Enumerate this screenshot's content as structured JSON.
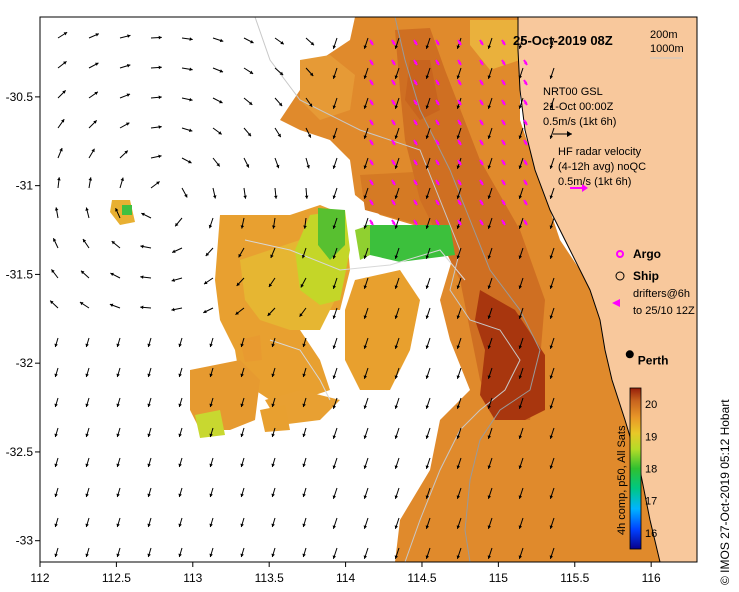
{
  "title": "25-Oct-2019 08Z",
  "isobaths": {
    "label_200": "200m",
    "label_1000": "1000m",
    "color_200": "#9a9a9a",
    "color_1000": "#c8c8c8"
  },
  "model_legend": {
    "line1": "NRT00 GSL",
    "line2": "21-Oct 00:00Z",
    "line3": "0.5m/s (1kt 6h)"
  },
  "hf_legend": {
    "line1": "HF radar velocity",
    "line2": "(4-12h avg) noQC",
    "line3": "0.5m/s (1kt 6h)"
  },
  "markers": {
    "argo": "Argo",
    "ship": "Ship",
    "drifters_line1": "drifters@6h",
    "drifters_line2": "to 25/10 12Z"
  },
  "place": {
    "name": "Perth",
    "lon": 115.86,
    "lat": -31.95
  },
  "side_label": "© IMOS 27-Oct-2019 05:12 Hobart",
  "colorbar": {
    "label": "4h comp, p50, All Sats",
    "ticks": [
      "20",
      "19",
      "18",
      "17",
      "16"
    ],
    "min": 15.5,
    "max": 20.5
  },
  "axes": {
    "x_ticks": [
      "112",
      "112.5",
      "113",
      "113.5",
      "114",
      "114.5",
      "115",
      "115.5",
      "116"
    ],
    "y_ticks": [
      "-30.5",
      "-31",
      "-31.5",
      "-32",
      "-32.5",
      "-33"
    ],
    "lon_range": [
      112.0,
      116.3
    ],
    "lat_range": [
      -33.12,
      -30.05
    ]
  },
  "colors": {
    "land": "#f8c89c",
    "arrows": "#000000",
    "hf_arrows": "#ff00ff",
    "warm": "#c8641e",
    "frame": "#000000"
  }
}
